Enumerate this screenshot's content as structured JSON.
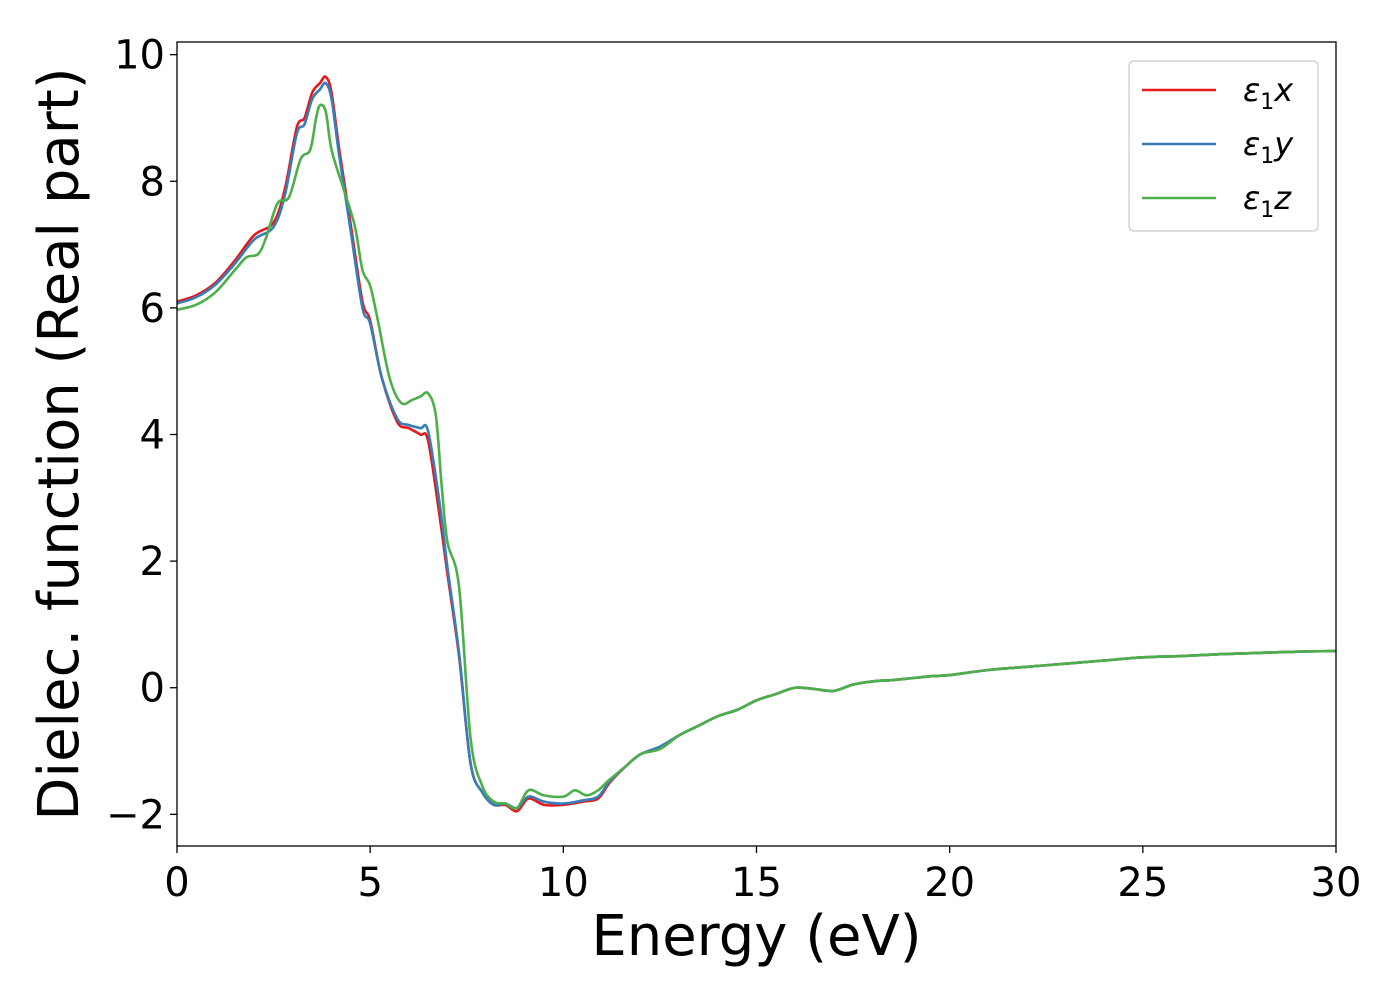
{
  "chart_data": {
    "type": "line",
    "xlabel": "Energy (eV)",
    "ylabel": "Dielec. function (Real part)",
    "xlim": [
      0,
      30
    ],
    "ylim": [
      -2.5,
      10.2
    ],
    "x_ticks": [
      0,
      5,
      10,
      15,
      20,
      25,
      30
    ],
    "x_tick_labels": [
      "0",
      "5",
      "10",
      "15",
      "20",
      "25",
      "30"
    ],
    "y_ticks": [
      -2,
      0,
      2,
      4,
      6,
      8,
      10
    ],
    "y_tick_labels": [
      "−2",
      "0",
      "2",
      "4",
      "6",
      "8",
      "10"
    ],
    "grid": false,
    "legend_position": "top-right",
    "series": [
      {
        "name": "ε1x",
        "legend_symbol": "ε",
        "legend_sub": "1",
        "legend_var": "x",
        "color": "#e41a1c",
        "x": [
          0,
          0.5,
          1.0,
          1.5,
          2.0,
          2.5,
          2.8,
          3.1,
          3.3,
          3.5,
          3.7,
          3.85,
          4.0,
          4.2,
          4.5,
          4.8,
          5.0,
          5.3,
          5.7,
          6.0,
          6.3,
          6.5,
          6.8,
          7.0,
          7.3,
          7.6,
          7.9,
          8.2,
          8.5,
          8.8,
          9.1,
          9.5,
          10.0,
          10.5,
          10.9,
          11.2,
          11.6,
          12.0,
          12.5,
          13.0,
          13.5,
          14.0,
          14.5,
          15.0,
          15.5,
          16.0,
          16.5,
          17.0,
          17.5,
          18.0,
          18.5,
          19.0,
          19.5,
          20.0,
          21.0,
          22.0,
          23.0,
          24.0,
          25.0,
          26.0,
          27.0,
          28.0,
          29.0,
          30.0
        ],
        "y": [
          6.1,
          6.2,
          6.4,
          6.75,
          7.15,
          7.35,
          7.9,
          8.85,
          9.0,
          9.4,
          9.55,
          9.65,
          9.4,
          8.5,
          7.3,
          6.1,
          5.8,
          4.9,
          4.2,
          4.1,
          4.0,
          3.9,
          2.7,
          1.8,
          0.5,
          -1.2,
          -1.65,
          -1.85,
          -1.85,
          -1.95,
          -1.75,
          -1.85,
          -1.85,
          -1.8,
          -1.75,
          -1.5,
          -1.25,
          -1.05,
          -0.95,
          -0.75,
          -0.6,
          -0.45,
          -0.35,
          -0.2,
          -0.1,
          0.0,
          -0.02,
          -0.05,
          0.05,
          0.1,
          0.12,
          0.15,
          0.18,
          0.2,
          0.28,
          0.33,
          0.38,
          0.43,
          0.48,
          0.5,
          0.53,
          0.55,
          0.57,
          0.58
        ]
      },
      {
        "name": "ε1y",
        "legend_symbol": "ε",
        "legend_sub": "1",
        "legend_var": "y",
        "color": "#377eb8",
        "x": [
          0,
          0.5,
          1.0,
          1.5,
          2.0,
          2.5,
          2.8,
          3.1,
          3.3,
          3.5,
          3.7,
          3.85,
          4.0,
          4.2,
          4.5,
          4.8,
          5.0,
          5.3,
          5.7,
          6.0,
          6.3,
          6.5,
          6.8,
          7.0,
          7.3,
          7.6,
          7.9,
          8.2,
          8.5,
          8.8,
          9.1,
          9.5,
          10.0,
          10.5,
          10.9,
          11.2,
          11.6,
          12.0,
          12.5,
          13.0,
          13.5,
          14.0,
          14.5,
          15.0,
          15.5,
          16.0,
          16.5,
          17.0,
          17.5,
          18.0,
          18.5,
          19.0,
          19.5,
          20.0,
          21.0,
          22.0,
          23.0,
          24.0,
          25.0,
          26.0,
          27.0,
          28.0,
          29.0,
          30.0
        ],
        "y": [
          6.07,
          6.17,
          6.37,
          6.7,
          7.08,
          7.28,
          7.8,
          8.75,
          8.9,
          9.3,
          9.45,
          9.55,
          9.3,
          8.4,
          7.2,
          6.0,
          5.75,
          4.9,
          4.25,
          4.15,
          4.1,
          4.05,
          2.9,
          1.9,
          0.55,
          -1.2,
          -1.65,
          -1.85,
          -1.83,
          -1.9,
          -1.72,
          -1.8,
          -1.83,
          -1.78,
          -1.72,
          -1.48,
          -1.25,
          -1.05,
          -0.93,
          -0.75,
          -0.6,
          -0.45,
          -0.35,
          -0.2,
          -0.1,
          0.0,
          -0.02,
          -0.05,
          0.05,
          0.1,
          0.12,
          0.15,
          0.18,
          0.2,
          0.28,
          0.33,
          0.38,
          0.43,
          0.48,
          0.5,
          0.53,
          0.55,
          0.57,
          0.58
        ]
      },
      {
        "name": "ε1z",
        "legend_symbol": "ε",
        "legend_sub": "1",
        "legend_var": "z",
        "color": "#4daf4a",
        "x": [
          0,
          0.5,
          1.0,
          1.5,
          1.8,
          2.1,
          2.3,
          2.6,
          2.9,
          3.2,
          3.45,
          3.6,
          3.7,
          3.85,
          4.0,
          4.3,
          4.6,
          4.8,
          5.0,
          5.2,
          5.5,
          5.8,
          6.1,
          6.3,
          6.5,
          6.7,
          6.85,
          7.0,
          7.3,
          7.6,
          7.9,
          8.2,
          8.5,
          8.8,
          9.1,
          9.5,
          10.0,
          10.3,
          10.6,
          10.9,
          11.2,
          11.6,
          12.0,
          12.5,
          13.0,
          13.5,
          14.0,
          14.5,
          15.0,
          15.5,
          16.0,
          16.5,
          17.0,
          17.5,
          18.0,
          18.5,
          19.0,
          19.5,
          20.0,
          21.0,
          22.0,
          23.0,
          24.0,
          25.0,
          26.0,
          27.0,
          28.0,
          29.0,
          30.0
        ],
        "y": [
          5.97,
          6.05,
          6.25,
          6.6,
          6.8,
          6.85,
          7.1,
          7.65,
          7.75,
          8.35,
          8.5,
          9.0,
          9.2,
          9.1,
          8.5,
          7.9,
          7.3,
          6.6,
          6.35,
          5.8,
          4.9,
          4.5,
          4.55,
          4.6,
          4.65,
          4.3,
          3.2,
          2.3,
          1.6,
          -0.8,
          -1.55,
          -1.8,
          -1.83,
          -1.9,
          -1.62,
          -1.7,
          -1.72,
          -1.62,
          -1.7,
          -1.62,
          -1.45,
          -1.25,
          -1.05,
          -0.97,
          -0.75,
          -0.6,
          -0.45,
          -0.35,
          -0.2,
          -0.1,
          0.0,
          -0.02,
          -0.05,
          0.05,
          0.1,
          0.12,
          0.15,
          0.18,
          0.2,
          0.28,
          0.33,
          0.38,
          0.43,
          0.48,
          0.5,
          0.53,
          0.55,
          0.57,
          0.58
        ]
      }
    ]
  }
}
